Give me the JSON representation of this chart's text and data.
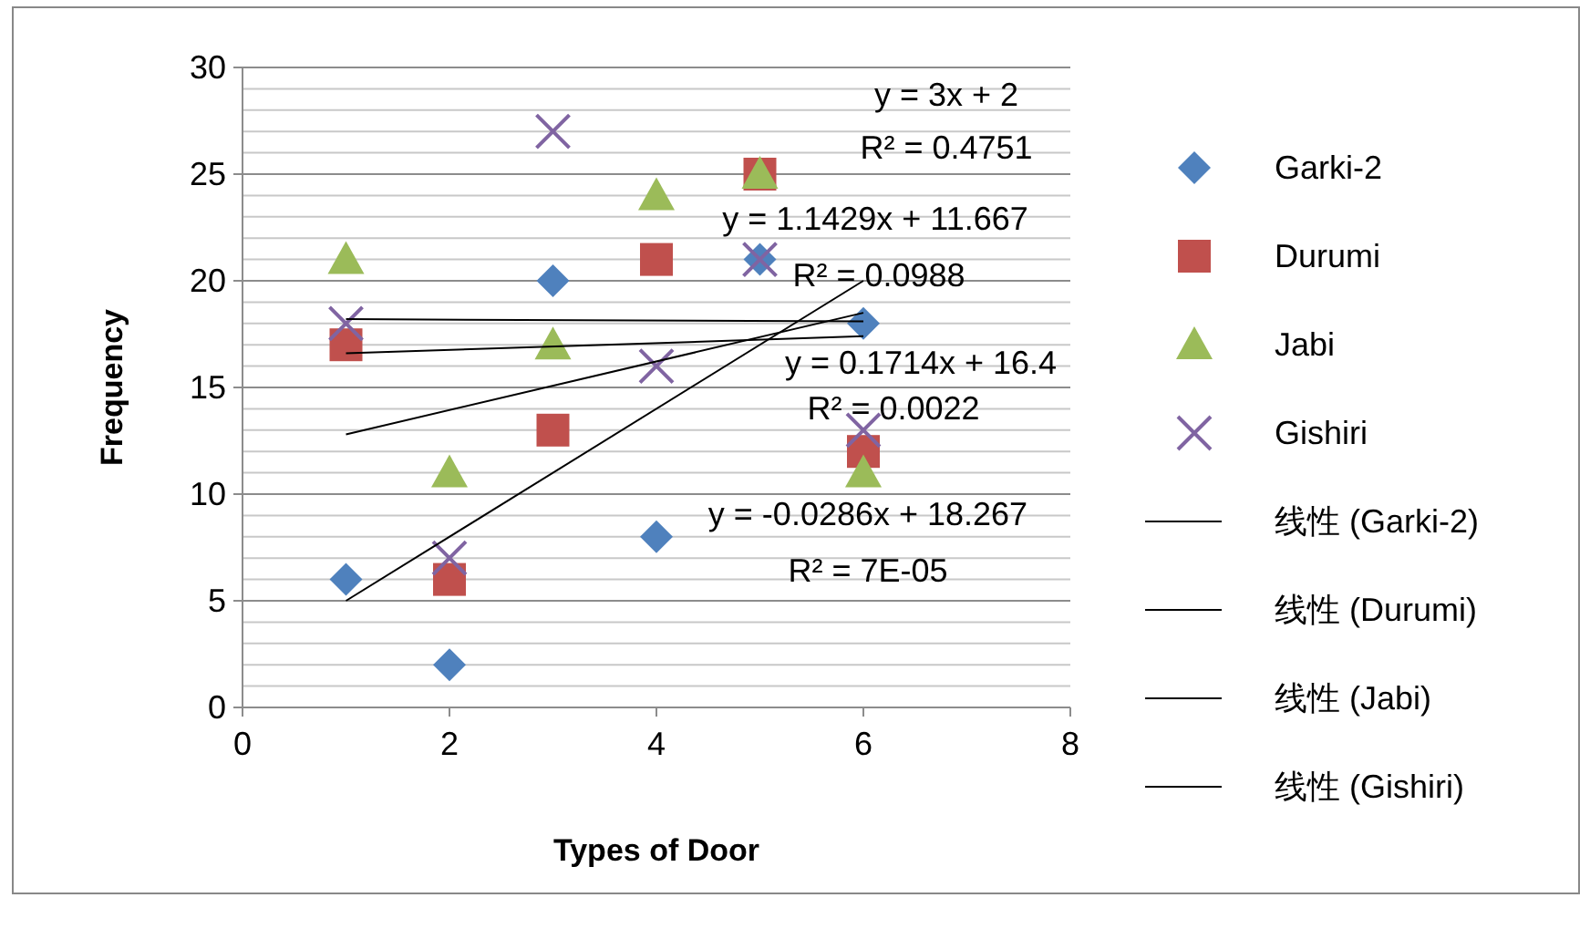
{
  "chart_data": {
    "type": "scatter",
    "xlabel": "Types of Door",
    "ylabel": "Frequency",
    "xlim": [
      0,
      8
    ],
    "xticks": [
      0,
      2,
      4,
      6,
      8
    ],
    "ylim": [
      0,
      30
    ],
    "yticks": [
      0,
      5,
      10,
      15,
      20,
      25,
      30
    ],
    "grid": "y",
    "legend": "right",
    "series": [
      {
        "name": "Garki-2",
        "color": "#4f81bd",
        "marker": "diamond",
        "x": [
          1,
          2,
          3,
          4,
          5,
          6
        ],
        "values": [
          6,
          2,
          20,
          8,
          21,
          18
        ]
      },
      {
        "name": "Durumi",
        "color": "#c0504d",
        "marker": "square",
        "x": [
          1,
          2,
          3,
          4,
          5,
          6
        ],
        "values": [
          17,
          6,
          13,
          21,
          25,
          12
        ]
      },
      {
        "name": "Jabi",
        "color": "#9bbb59",
        "marker": "triangle",
        "x": [
          1,
          2,
          3,
          4,
          5,
          6
        ],
        "values": [
          21,
          11,
          17,
          24,
          25,
          11
        ]
      },
      {
        "name": "Gishiri",
        "color": "#8064a2",
        "marker": "cross",
        "x": [
          1,
          2,
          3,
          4,
          5,
          6
        ],
        "values": [
          18,
          7,
          27,
          16,
          21,
          13
        ]
      },
      {
        "name": "线性 (Garki-2)",
        "type": "line",
        "color": "#000000",
        "x": [
          1,
          6
        ],
        "values": [
          5,
          20
        ]
      },
      {
        "name": "线性 (Durumi)",
        "type": "line",
        "color": "#000000",
        "x": [
          1,
          6
        ],
        "values": [
          12.8,
          18.5
        ]
      },
      {
        "name": "线性 (Jabi)",
        "type": "line",
        "color": "#000000",
        "x": [
          1,
          6
        ],
        "values": [
          18.2,
          18.1
        ]
      },
      {
        "name": "线性 (Gishiri)",
        "type": "line",
        "color": "#000000",
        "x": [
          1,
          6
        ],
        "values": [
          16.6,
          17.4
        ]
      }
    ],
    "annotations": [
      "y = 3x + 2",
      "R² = 0.4751",
      "y = 1.1429x + 11.667",
      "R² = 0.0988",
      "y = 0.1714x + 16.4",
      "R² = 0.0022",
      "y = -0.0286x + 18.267",
      "R² = 7E-05"
    ]
  }
}
